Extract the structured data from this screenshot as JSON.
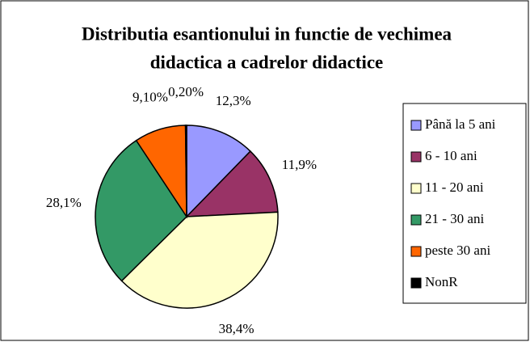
{
  "chart_data": {
    "type": "pie",
    "title": "Distributia esantionului in functie de vechimea didactica a cadrelor didactice",
    "categories": [
      "Până la 5 ani",
      "6 - 10 ani",
      "11 - 20 ani",
      "21 - 30 ani",
      "peste 30 ani",
      "NonR"
    ],
    "values": [
      12.3,
      11.9,
      38.4,
      28.1,
      9.1,
      0.2
    ],
    "value_labels": [
      "12,3%",
      "11,9%",
      "38,4%",
      "28,1%",
      "9,10%",
      "0,20%"
    ],
    "colors": [
      "#9999ff",
      "#993366",
      "#ffffcc",
      "#339966",
      "#ff6600",
      "#000000"
    ],
    "legend": "right"
  }
}
